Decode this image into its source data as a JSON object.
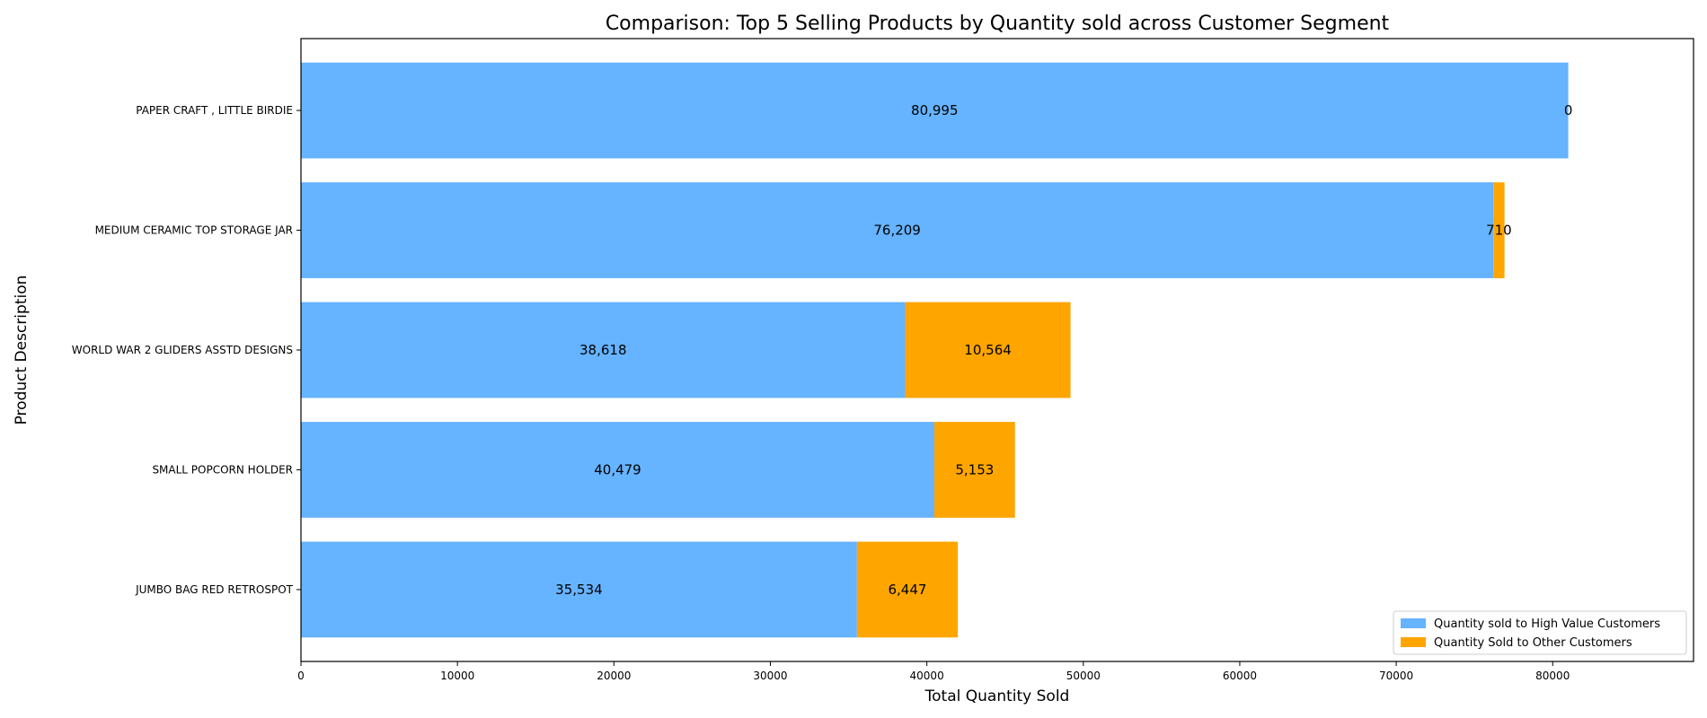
{
  "chart_data": {
    "type": "bar",
    "orientation": "horizontal",
    "stacked": true,
    "title": "Comparison: Top 5 Selling Products by Quantity sold across Customer Segment",
    "xlabel": "Total Quantity Sold",
    "ylabel": "Product Description",
    "categories": [
      "PAPER CRAFT , LITTLE BIRDIE",
      "MEDIUM CERAMIC TOP STORAGE JAR",
      "WORLD WAR 2 GLIDERS ASSTD DESIGNS",
      "SMALL POPCORN HOLDER",
      "JUMBO BAG RED RETROSPOT"
    ],
    "series": [
      {
        "name": "Quantity sold to High Value Customers",
        "values": [
          80995,
          76209,
          38618,
          40479,
          35534
        ],
        "labels": [
          "80,995",
          "76,209",
          "38,618",
          "40,479",
          "35,534"
        ]
      },
      {
        "name": "Quantity Sold to Other Customers",
        "values": [
          0,
          710,
          10564,
          5153,
          6447
        ],
        "labels": [
          "0",
          "710",
          "10,564",
          "5,153",
          "6,447"
        ]
      }
    ],
    "xlim": [
      0,
      89000
    ],
    "xticks": [
      0,
      10000,
      20000,
      30000,
      40000,
      50000,
      60000,
      70000,
      80000
    ],
    "xtick_labels": [
      "0",
      "10000",
      "20000",
      "30000",
      "40000",
      "50000",
      "60000",
      "70000",
      "80000"
    ],
    "grid": false,
    "legend_position": "lower-right",
    "colors": [
      "#66b3ff",
      "#ffa500"
    ]
  }
}
